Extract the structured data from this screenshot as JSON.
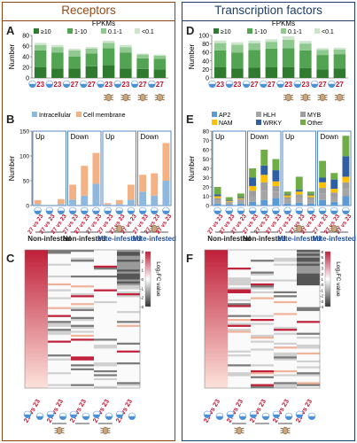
{
  "titles": {
    "receptors": "Receptors",
    "tf": "Transcription factors"
  },
  "panel_letters": {
    "A": "A",
    "B": "B",
    "C": "C",
    "D": "D",
    "E": "E",
    "F": "F"
  },
  "axis": {
    "number": "Number",
    "fpkm_legend_title": "FPKMs",
    "log2fc": "Log₂FC value"
  },
  "compare": {
    "vs": "vs"
  },
  "colors": {
    "fpkm_high": "#2f7a2f",
    "fpkm_mid": "#52a352",
    "fpkm_low": "#8fc98f",
    "fpkm_lowest": "#cce6cc",
    "intracellular": "#8fb8de",
    "cell_membrane": "#f4b183",
    "AP2": "#5b9bd5",
    "HLH": "#a5a5a5",
    "MYB": "#9e9e9e",
    "NAM": "#ffc000",
    "WRKY": "#2e5fa3",
    "Other": "#70ad47",
    "heat_high": "#c0203a",
    "heat_low": "#333333",
    "red_text": "#c0142f",
    "blue_text": "#1f4e9a"
  },
  "chart_data": [
    {
      "panel": "A",
      "type": "bar",
      "stacked": true,
      "categories": [
        "23",
        "23",
        "27",
        "27",
        "23",
        "23",
        "27",
        "27"
      ],
      "legend": [
        "≥10",
        "1-10",
        "0.1-1",
        "<0.1"
      ],
      "legend_title": "FPKMs",
      "ylabel": "Number",
      "ylim": [
        0,
        80
      ],
      "yticks": [
        0,
        20,
        40,
        60,
        80
      ],
      "series": [
        {
          "name": "≥10",
          "values": [
            20,
            18,
            18,
            22,
            24,
            18,
            17,
            16
          ]
        },
        {
          "name": "1-10",
          "values": [
            32,
            30,
            22,
            24,
            32,
            30,
            20,
            20
          ]
        },
        {
          "name": "0.1-1",
          "values": [
            10,
            10,
            12,
            9,
            10,
            10,
            7,
            6
          ]
        },
        {
          "name": "<0.1",
          "values": [
            4,
            4,
            3,
            3,
            4,
            4,
            2,
            2
          ]
        }
      ]
    },
    {
      "panel": "D",
      "type": "bar",
      "stacked": true,
      "categories": [
        "23",
        "23",
        "27",
        "27",
        "23",
        "23",
        "27",
        "27"
      ],
      "legend": [
        "≥10",
        "1-10",
        "0.1-1",
        "<0.1"
      ],
      "legend_title": "FPKMs",
      "ylabel": "Number",
      "ylim": [
        0,
        100
      ],
      "yticks": [
        0,
        20,
        40,
        60,
        80,
        100
      ],
      "series": [
        {
          "name": "≥10",
          "values": [
            25,
            22,
            24,
            25,
            25,
            23,
            20,
            22
          ]
        },
        {
          "name": "1-10",
          "values": [
            40,
            38,
            42,
            44,
            45,
            42,
            34,
            34
          ]
        },
        {
          "name": "0.1-1",
          "values": [
            17,
            18,
            16,
            16,
            20,
            16,
            12,
            11
          ]
        },
        {
          "name": "<0.1",
          "values": [
            6,
            6,
            6,
            6,
            8,
            6,
            4,
            4
          ]
        }
      ]
    },
    {
      "panel": "B",
      "type": "bar",
      "stacked": true,
      "legend": [
        "Intracellular",
        "Cell membrane"
      ],
      "ylabel": "Number",
      "ylim": [
        0,
        150
      ],
      "yticks": [
        0,
        50,
        100,
        150
      ],
      "box_labels": [
        "Up",
        "Down",
        "Up",
        "Down"
      ],
      "categories": [
        "27 vs 23",
        "27 vs 23",
        "27 vs 23",
        "27 vs 23",
        "27 vs 23",
        "27 vs 23",
        "27 vs 23",
        "27 vs 23",
        "27 vs 23",
        "27 vs 23",
        "27 vs 23",
        "27 vs 23"
      ],
      "series": [
        {
          "name": "Intracellular",
          "values": [
            3,
            0,
            3,
            12,
            20,
            44,
            2,
            3,
            12,
            28,
            20,
            50
          ]
        },
        {
          "name": "Cell membrane",
          "values": [
            8,
            0,
            10,
            30,
            60,
            62,
            3,
            8,
            30,
            34,
            45,
            76
          ]
        }
      ]
    },
    {
      "panel": "E",
      "type": "bar",
      "stacked": true,
      "legend": [
        "AP2",
        "HLH",
        "MYB",
        "NAM",
        "WRKY",
        "Other"
      ],
      "ylabel": "Number",
      "ylim": [
        0,
        80
      ],
      "yticks": [
        0,
        10,
        20,
        30,
        40,
        50,
        60,
        70,
        80
      ],
      "box_labels": [
        "Up",
        "Down",
        "Up",
        "Down"
      ],
      "categories": [
        "27 vs 23",
        "27 vs 23",
        "27 vs 23",
        "27 vs 23",
        "27 vs 23",
        "27 vs 23",
        "27 vs 23",
        "27 vs 23",
        "27 vs 23",
        "27 vs 23",
        "27 vs 23",
        "27 vs 23"
      ],
      "series": [
        {
          "name": "AP2",
          "values": [
            2,
            1,
            2,
            4,
            6,
            8,
            2,
            3,
            2,
            6,
            4,
            10
          ]
        },
        {
          "name": "HLH",
          "values": [
            3,
            2,
            3,
            6,
            10,
            7,
            4,
            5,
            4,
            7,
            5,
            8
          ]
        },
        {
          "name": "MYB",
          "values": [
            3,
            1,
            2,
            6,
            9,
            6,
            3,
            4,
            3,
            6,
            5,
            7
          ]
        },
        {
          "name": "NAM",
          "values": [
            2,
            1,
            1,
            5,
            8,
            5,
            2,
            3,
            2,
            6,
            4,
            6
          ]
        },
        {
          "name": "WRKY",
          "values": [
            2,
            1,
            1,
            9,
            10,
            12,
            1,
            2,
            1,
            5,
            10,
            22
          ]
        },
        {
          "name": "Other",
          "values": [
            8,
            3,
            4,
            10,
            17,
            12,
            3,
            14,
            3,
            18,
            7,
            22
          ]
        }
      ]
    },
    {
      "panel": "C",
      "type": "heatmap",
      "colorbar_label": "Log₂FC value",
      "colorbar_range": [
        -3,
        3
      ],
      "colorbar_ticks": [
        "3",
        "2",
        "1",
        "0",
        "-1",
        "-2",
        "-3"
      ],
      "n_columns": 5,
      "column_comparisons": [
        "23 vs 23",
        "27 vs 23",
        "27 vs 23",
        "27 vs 23",
        "23 vs 23"
      ]
    },
    {
      "panel": "F",
      "type": "heatmap",
      "colorbar_label": "Log₂FC value",
      "colorbar_range": [
        -4,
        6
      ],
      "colorbar_ticks": [
        "6",
        "5",
        "4",
        "3",
        "2",
        "1",
        "0",
        "-1",
        "-2",
        "-3",
        "-4"
      ],
      "n_columns": 5,
      "column_comparisons": [
        "23 vs 23",
        "27 vs 23",
        "27 vs 23",
        "27 vs 23",
        "23 vs 23"
      ]
    }
  ],
  "groups": [
    "Non-infested",
    "Non-infested",
    "Mite-infested",
    "Mite-infested"
  ],
  "group_colors": [
    "#222222",
    "#222222",
    "#1f4e9a",
    "#1f4e9a"
  ]
}
